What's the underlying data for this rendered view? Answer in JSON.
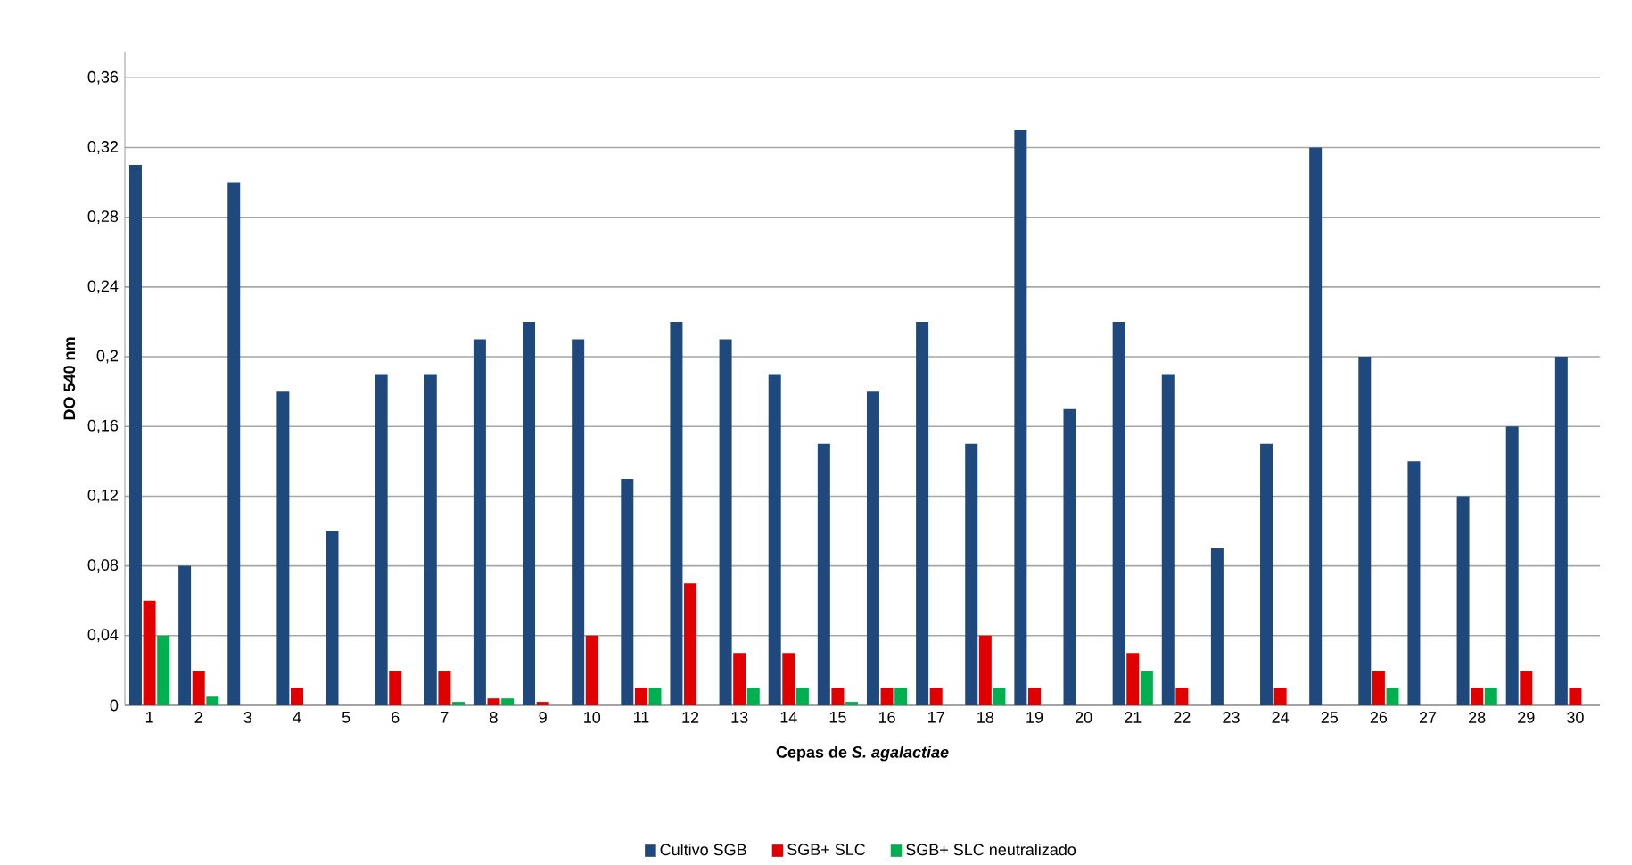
{
  "chart_data": {
    "type": "bar",
    "xlabel": "Cepas de *S. agalactiae*",
    "ylabel": "DO 540 nm",
    "categories": [
      "1",
      "2",
      "3",
      "4",
      "5",
      "6",
      "7",
      "8",
      "9",
      "10",
      "11",
      "12",
      "13",
      "14",
      "15",
      "16",
      "17",
      "18",
      "19",
      "20",
      "21",
      "22",
      "23",
      "24",
      "25",
      "26",
      "27",
      "28",
      "29",
      "30"
    ],
    "series": [
      {
        "name": "Cultivo SGB",
        "color": "#1f497d",
        "values": [
          0.31,
          0.08,
          0.3,
          0.18,
          0.1,
          0.19,
          0.19,
          0.21,
          0.22,
          0.21,
          0.13,
          0.22,
          0.21,
          0.19,
          0.15,
          0.18,
          0.22,
          0.15,
          0.33,
          0.17,
          0.22,
          0.19,
          0.09,
          0.15,
          0.32,
          0.2,
          0.14,
          0.12,
          0.16,
          0.2
        ]
      },
      {
        "name": "SGB+ SLC",
        "color": "#e00000",
        "values": [
          0.06,
          0.02,
          0,
          0.01,
          0,
          0.02,
          0.02,
          0.004,
          0.002,
          0.04,
          0.01,
          0.07,
          0.03,
          0.03,
          0.01,
          0.01,
          0.01,
          0.04,
          0.01,
          0,
          0.03,
          0.01,
          0,
          0.01,
          0,
          0.02,
          0,
          0.01,
          0.02,
          0.01
        ]
      },
      {
        "name": "SGB+ SLC neutralizado",
        "color": "#00b050",
        "values": [
          0.04,
          0.005,
          0,
          0,
          0,
          0,
          0.002,
          0.004,
          0,
          0,
          0.01,
          0,
          0.01,
          0.01,
          0.002,
          0.01,
          0,
          0.01,
          0,
          0,
          0.02,
          0,
          0,
          0,
          0,
          0.01,
          0,
          0.01,
          0,
          0
        ]
      }
    ],
    "ylim": [
      0,
      0.375
    ],
    "yticks": [
      0,
      {
        "value": 0.04,
        "label": "0,04"
      },
      {
        "value": 0.08,
        "label": "0,08"
      },
      {
        "value": 0.12,
        "label": "0,12"
      },
      {
        "value": 0.16,
        "label": "0,16"
      },
      {
        "value": 0.2,
        "label": "0,2"
      },
      {
        "value": 0.24,
        "label": "0,24"
      },
      {
        "value": 0.28,
        "label": "0,28"
      },
      {
        "value": 0.32,
        "label": "0,32"
      },
      {
        "value": 0.36,
        "label": "0,36"
      }
    ],
    "grid": "y",
    "legend": "bottom"
  }
}
